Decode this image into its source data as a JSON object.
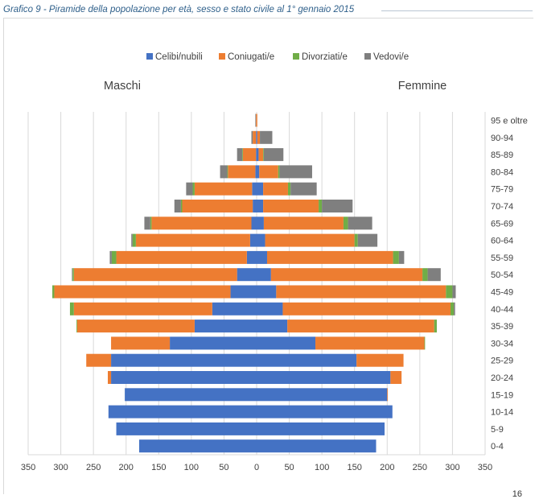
{
  "caption": "Grafico 9 - Piramide della popolazione per età, sesso e stato civile al 1° gennaio 2015",
  "page_number": "16",
  "chart_data": {
    "type": "bar",
    "orientation": "horizontal-pyramid",
    "title": "",
    "left_group_label": "Maschi",
    "right_group_label": "Femmine",
    "xlim": [
      -350,
      350
    ],
    "x_ticks": [
      -350,
      -300,
      -250,
      -200,
      -150,
      -100,
      -50,
      0,
      50,
      100,
      150,
      200,
      250,
      300,
      350
    ],
    "x_tick_labels": [
      "350",
      "300",
      "250",
      "200",
      "150",
      "100",
      "50",
      "0",
      "50",
      "100",
      "150",
      "200",
      "250",
      "300",
      "350"
    ],
    "grid": "vertical",
    "legend_position": "top",
    "categories": [
      "95 e oltre",
      "90-94",
      "85-89",
      "80-84",
      "75-79",
      "70-74",
      "65-69",
      "60-64",
      "55-59",
      "50-54",
      "45-49",
      "40-44",
      "35-39",
      "30-34",
      "25-29",
      "20-24",
      "15-19",
      "10-14",
      "5-9",
      "0-4"
    ],
    "series": [
      {
        "name": "Celibi/nubili",
        "color": "#4472c4",
        "maschi": [
          0,
          1,
          1,
          2,
          7,
          6,
          8,
          10,
          15,
          30,
          40,
          68,
          95,
          133,
          223,
          223,
          202,
          227,
          215,
          180
        ],
        "femmine": [
          0,
          1,
          3,
          4,
          10,
          10,
          11,
          13,
          16,
          22,
          30,
          40,
          47,
          90,
          153,
          205,
          200,
          208,
          196,
          183
        ]
      },
      {
        "name": "Coniugati/e",
        "color": "#ed7d31",
        "maschi": [
          1,
          5,
          20,
          42,
          88,
          108,
          153,
          175,
          200,
          250,
          270,
          212,
          180,
          90,
          38,
          5,
          0,
          0,
          0,
          0
        ],
        "femmine": [
          1,
          4,
          7,
          29,
          38,
          85,
          122,
          137,
          193,
          232,
          260,
          257,
          225,
          167,
          72,
          17,
          1,
          0,
          0,
          0
        ]
      },
      {
        "name": "Divorziati/e",
        "color": "#70ad47",
        "maschi": [
          0,
          0,
          1,
          1,
          3,
          2,
          2,
          5,
          7,
          2,
          3,
          6,
          1,
          0,
          0,
          0,
          0,
          0,
          0,
          0
        ],
        "femmine": [
          0,
          0,
          1,
          2,
          4,
          5,
          7,
          5,
          9,
          8,
          10,
          5,
          4,
          1,
          0,
          0,
          0,
          0,
          0,
          0
        ]
      },
      {
        "name": "Vedovi/e",
        "color": "#7f7f7f",
        "maschi": [
          1,
          2,
          8,
          11,
          10,
          10,
          9,
          2,
          3,
          1,
          0,
          0,
          0,
          0,
          0,
          0,
          0,
          0,
          0,
          0
        ],
        "femmine": [
          0,
          19,
          30,
          50,
          40,
          47,
          37,
          30,
          8,
          20,
          5,
          2,
          0,
          0,
          0,
          0,
          0,
          0,
          0,
          0
        ]
      }
    ]
  }
}
